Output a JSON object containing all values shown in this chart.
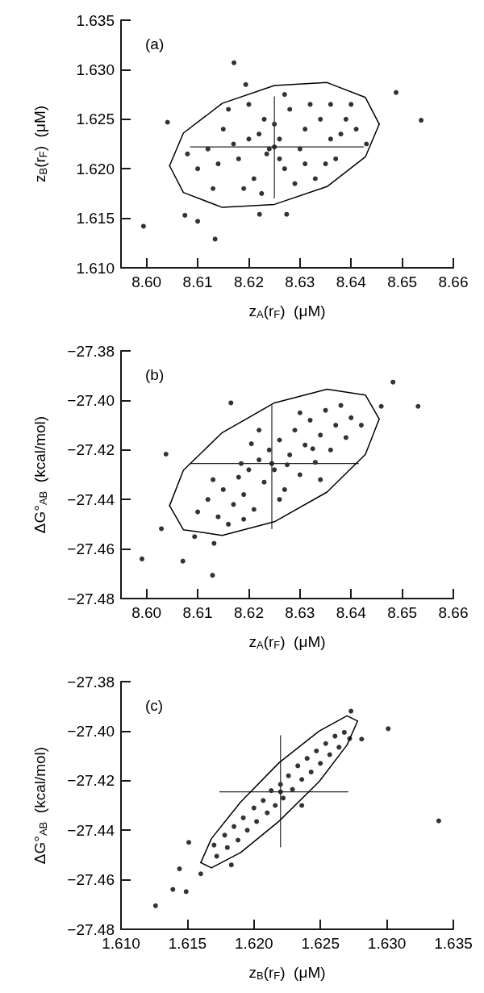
{
  "chart_data": [
    {
      "type": "scatter",
      "title": "(a)",
      "xlabel": "z$_{A}$(r$_{F}$)  (μM)",
      "ylabel": "z$_{B}$(r$_{F}$)  (μM)",
      "xlim": [
        8.595,
        8.66
      ],
      "ylim": [
        1.61,
        1.635
      ],
      "xticks": [
        {
          "value": 8.6,
          "label": "8.60"
        },
        {
          "value": 8.61,
          "label": "8.61"
        },
        {
          "value": 8.62,
          "label": "8.62"
        },
        {
          "value": 8.63,
          "label": "8.63"
        },
        {
          "value": 8.64,
          "label": "8.64"
        },
        {
          "value": 8.65,
          "label": "8.65"
        },
        {
          "value": 8.66,
          "label": "8.66"
        }
      ],
      "yticks": [
        {
          "value": 1.61,
          "label": "1.610"
        },
        {
          "value": 1.615,
          "label": "1.615"
        },
        {
          "value": 1.62,
          "label": "1.620"
        },
        {
          "value": 1.625,
          "label": "1.625"
        },
        {
          "value": 1.63,
          "label": "1.630"
        },
        {
          "value": 1.635,
          "label": "1.635"
        }
      ],
      "series": [
        {
          "marker": "circle",
          "color": "#333333",
          "x": [
            8.6171,
            8.6488,
            8.6537,
            8.5994,
            8.6075,
            8.61,
            8.6134,
            8.6221,
            8.6274,
            8.6041,
            8.6194,
            8.612,
            8.615,
            8.618,
            8.62,
            8.621,
            8.623,
            8.624,
            8.626,
            8.627,
            8.628,
            8.63,
            8.631,
            8.633,
            8.634,
            8.636,
            8.637,
            8.639,
            8.641,
            8.61,
            8.613,
            8.616,
            8.619,
            8.622,
            8.6235,
            8.625,
            8.626,
            8.629,
            8.632,
            8.635,
            8.638,
            8.643,
            8.617,
            8.62,
            8.627,
            8.6225,
            8.64,
            8.608,
            8.614,
            8.631,
            8.636
          ],
          "values": [
            1.6307,
            1.6277,
            1.6249,
            1.6142,
            1.6153,
            1.6147,
            1.6129,
            1.6154,
            1.6154,
            1.6247,
            1.6285,
            1.622,
            1.624,
            1.621,
            1.623,
            1.619,
            1.625,
            1.622,
            1.623,
            1.62,
            1.626,
            1.622,
            1.624,
            1.619,
            1.625,
            1.623,
            1.621,
            1.625,
            1.624,
            1.62,
            1.618,
            1.626,
            1.618,
            1.6235,
            1.6215,
            1.6245,
            1.621,
            1.6185,
            1.6265,
            1.6205,
            1.6235,
            1.6225,
            1.6225,
            1.6265,
            1.6275,
            1.6175,
            1.6265,
            1.6215,
            1.6205,
            1.6205,
            1.6265
          ]
        },
        {
          "type": "line",
          "marker": "none",
          "color": "#000000",
          "x": [
            8.6045,
            8.6072,
            8.6148,
            8.625,
            8.6353,
            8.6428,
            8.6455
          ],
          "values": [
            1.6203,
            1.6236,
            1.6266,
            1.6284,
            1.6287,
            1.6272,
            1.6245
          ]
        },
        {
          "type": "line",
          "marker": "none",
          "color": "#000000",
          "x": [
            8.6045,
            8.6072,
            8.6148,
            8.625,
            8.6353,
            8.6428,
            8.6455
          ],
          "values": [
            1.6203,
            1.6176,
            1.6161,
            1.6164,
            1.6182,
            1.6212,
            1.6245
          ]
        },
        {
          "marker": "circle",
          "color": "#262626",
          "x": [
            8.625
          ],
          "values": [
            1.6222
          ],
          "errors": [
            [
              1.617,
              1.6273
            ]
          ],
          "xerrors": [
            [
              8.6085,
              8.6425
            ]
          ]
        }
      ]
    },
    {
      "type": "scatter",
      "title": "(b)",
      "xlabel": "z$_{A}$(r$_{F}$)  (μM)",
      "ylabel": "ΔG°$_{AB}$  (kcal/mol)",
      "xlim": [
        8.595,
        8.66
      ],
      "ylim": [
        -27.48,
        -27.38
      ],
      "xticks": [
        {
          "value": 8.6,
          "label": "8.60"
        },
        {
          "value": 8.61,
          "label": "8.61"
        },
        {
          "value": 8.62,
          "label": "8.62"
        },
        {
          "value": 8.63,
          "label": "8.63"
        },
        {
          "value": 8.64,
          "label": "8.64"
        },
        {
          "value": 8.65,
          "label": "8.65"
        },
        {
          "value": 8.66,
          "label": "8.66"
        }
      ],
      "yticks": [
        {
          "value": -27.48,
          "label": "−27.48"
        },
        {
          "value": -27.46,
          "label": "−27.46"
        },
        {
          "value": -27.44,
          "label": "−27.44"
        },
        {
          "value": -27.42,
          "label": "−27.42"
        },
        {
          "value": -27.4,
          "label": "−27.40"
        },
        {
          "value": -27.38,
          "label": "−27.38"
        }
      ],
      "series": [
        {
          "marker": "circle",
          "color": "#333333",
          "x": [
            8.6482,
            8.6531,
            8.6459,
            8.6038,
            8.6029,
            8.5991,
            8.6071,
            8.6129,
            8.6132,
            8.6094,
            8.6165,
            8.61,
            8.612,
            8.614,
            8.615,
            8.617,
            8.618,
            8.619,
            8.62,
            8.621,
            8.622,
            8.623,
            8.624,
            8.625,
            8.626,
            8.627,
            8.628,
            8.629,
            8.63,
            8.631,
            8.632,
            8.633,
            8.634,
            8.635,
            8.636,
            8.637,
            8.638,
            8.639,
            8.64,
            8.642,
            8.616,
            8.619,
            8.613,
            8.622,
            8.626,
            8.63,
            8.634,
            8.6205,
            8.6275,
            8.6185,
            8.6325
          ],
          "values": [
            -27.3926,
            -27.4024,
            -27.4024,
            -27.4217,
            -27.4518,
            -27.464,
            -27.4649,
            -27.4706,
            -27.4577,
            -27.455,
            -27.401,
            -27.445,
            -27.44,
            -27.447,
            -27.436,
            -27.442,
            -27.431,
            -27.438,
            -27.428,
            -27.444,
            -27.424,
            -27.433,
            -27.42,
            -27.428,
            -27.416,
            -27.436,
            -27.422,
            -27.412,
            -27.43,
            -27.418,
            -27.408,
            -27.425,
            -27.414,
            -27.404,
            -27.42,
            -27.41,
            -27.402,
            -27.415,
            -27.407,
            -27.41,
            -27.45,
            -27.448,
            -27.432,
            -27.412,
            -27.44,
            -27.405,
            -27.432,
            -27.4175,
            -27.426,
            -27.4255,
            -27.4195
          ]
        },
        {
          "type": "line",
          "marker": "none",
          "color": "#000000",
          "x": [
            8.6045,
            8.6072,
            8.6148,
            8.625,
            8.6353,
            8.6428,
            8.6455
          ],
          "values": [
            -27.4425,
            -27.4282,
            -27.413,
            -27.401,
            -27.3955,
            -27.3978,
            -27.4075
          ]
        },
        {
          "type": "line",
          "marker": "none",
          "color": "#000000",
          "x": [
            8.6045,
            8.6072,
            8.6148,
            8.625,
            8.6353,
            8.6428,
            8.6455
          ],
          "values": [
            -27.4425,
            -27.4522,
            -27.4545,
            -27.449,
            -27.437,
            -27.4218,
            -27.4075
          ]
        },
        {
          "marker": "circle",
          "color": "#262626",
          "x": [
            8.6245
          ],
          "values": [
            -27.4255
          ],
          "errors": [
            [
              -27.452,
              -27.402
            ]
          ],
          "xerrors": [
            [
              8.6085,
              8.6415
            ]
          ]
        }
      ]
    },
    {
      "type": "scatter",
      "title": "(c)",
      "xlabel": "z$_{B}$(r$_{F}$)  (μM)",
      "ylabel": "ΔG°$_{AB}$  (kcal/mol)",
      "xlim": [
        1.61,
        1.635
      ],
      "ylim": [
        -27.48,
        -27.38
      ],
      "xticks": [
        {
          "value": 1.61,
          "label": "1.610"
        },
        {
          "value": 1.615,
          "label": "1.615"
        },
        {
          "value": 1.62,
          "label": "1.620"
        },
        {
          "value": 1.625,
          "label": "1.625"
        },
        {
          "value": 1.63,
          "label": "1.630"
        },
        {
          "value": 1.635,
          "label": "1.635"
        }
      ],
      "yticks": [
        {
          "value": -27.48,
          "label": "−27.48"
        },
        {
          "value": -27.46,
          "label": "−27.46"
        },
        {
          "value": -27.44,
          "label": "−27.44"
        },
        {
          "value": -27.42,
          "label": "−27.42"
        },
        {
          "value": -27.4,
          "label": "−27.40"
        },
        {
          "value": -27.38,
          "label": "−27.38"
        }
      ],
      "series": [
        {
          "marker": "circle",
          "color": "#333333",
          "x": [
            1.6273,
            1.6301,
            1.6281,
            1.6339,
            1.6236,
            1.6151,
            1.6144,
            1.616,
            1.6139,
            1.6149,
            1.6126,
            1.6183,
            1.617,
            1.6172,
            1.6178,
            1.618,
            1.6185,
            1.6188,
            1.6192,
            1.6195,
            1.62,
            1.6202,
            1.6207,
            1.621,
            1.6213,
            1.6216,
            1.622,
            1.6222,
            1.6226,
            1.6229,
            1.6233,
            1.6236,
            1.624,
            1.6243,
            1.6247,
            1.625,
            1.6254,
            1.6257,
            1.6261,
            1.6264,
            1.6268,
            1.6272
          ],
          "values": [
            -27.3919,
            -27.399,
            -27.4032,
            -27.4362,
            -27.43,
            -27.4449,
            -27.4556,
            -27.4576,
            -27.4639,
            -27.4648,
            -27.4705,
            -27.454,
            -27.446,
            -27.4505,
            -27.442,
            -27.447,
            -27.4385,
            -27.444,
            -27.435,
            -27.44,
            -27.431,
            -27.4365,
            -27.428,
            -27.433,
            -27.424,
            -27.43,
            -27.4215,
            -27.427,
            -27.418,
            -27.4235,
            -27.414,
            -27.4195,
            -27.411,
            -27.4165,
            -27.408,
            -27.413,
            -27.405,
            -27.4095,
            -27.402,
            -27.4065,
            -27.4005,
            -27.403
          ]
        },
        {
          "type": "line",
          "marker": "none",
          "color": "#000000",
          "x": [
            1.616,
            1.6168,
            1.619,
            1.6219,
            1.6249,
            1.627,
            1.6278
          ],
          "values": [
            -27.4531,
            -27.4434,
            -27.4286,
            -27.4127,
            -27.4,
            -27.3938,
            -27.3959
          ]
        },
        {
          "type": "line",
          "marker": "none",
          "color": "#000000",
          "x": [
            1.616,
            1.6168,
            1.619,
            1.6219,
            1.6249,
            1.627,
            1.6278
          ],
          "values": [
            -27.4531,
            -27.4552,
            -27.449,
            -27.4363,
            -27.4204,
            -27.4056,
            -27.3959
          ]
        },
        {
          "marker": "circle",
          "color": "#262626",
          "x": [
            1.622
          ],
          "values": [
            -27.4245
          ],
          "errors": [
            [
              -27.4469,
              -27.4017
            ]
          ],
          "xerrors": [
            [
              1.6174,
              1.6271
            ]
          ]
        }
      ]
    }
  ]
}
